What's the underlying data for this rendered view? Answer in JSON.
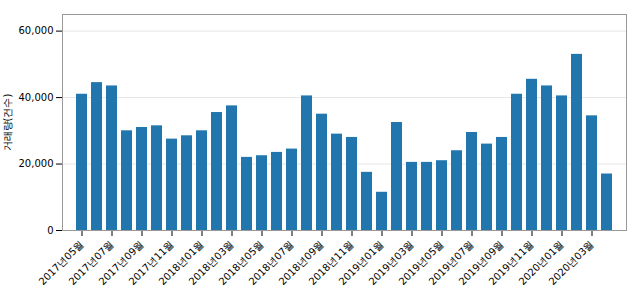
{
  "chart_data": {
    "type": "bar",
    "ylabel": "거래량(건수)",
    "categories": [
      "2017년05월",
      null,
      "2017년07월",
      null,
      "2017년09월",
      null,
      "2017년11월",
      null,
      "2018년01월",
      null,
      "2018년03월",
      null,
      "2018년05월",
      null,
      "2018년07월",
      null,
      "2018년09월",
      null,
      "2018년11월",
      null,
      "2019년01월",
      null,
      "2019년03월",
      null,
      "2019년05월",
      null,
      "2019년07월",
      null,
      "2019년09월",
      null,
      "2019년11월",
      null,
      "2020년01월",
      null,
      "2020년03월",
      null
    ],
    "values": [
      41000,
      44500,
      43500,
      30000,
      31000,
      31500,
      27500,
      28500,
      30000,
      35500,
      37500,
      22000,
      22500,
      23500,
      24500,
      40500,
      35000,
      29000,
      28000,
      17500,
      11500,
      32500,
      20500,
      20500,
      21000,
      24000,
      29500,
      26000,
      28000,
      41000,
      45500,
      43500,
      40500,
      53000,
      34500,
      17000
    ],
    "color": "#2176ae",
    "ylim": [
      0,
      65000
    ],
    "yticks": [
      0,
      {
        "value": 20000,
        "label": "20,000"
      },
      {
        "value": 40000,
        "label": "40,000"
      },
      {
        "value": 60000,
        "label": "60,000"
      }
    ],
    "grid": true
  }
}
